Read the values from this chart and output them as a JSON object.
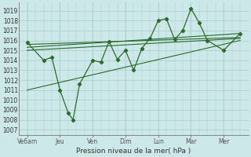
{
  "xlabel": "Pression niveau de la mer( hPa )",
  "bg_color": "#cce8e8",
  "grid_color": "#aacccc",
  "line_color": "#2d6a2d",
  "xlim": [
    0,
    14
  ],
  "ylim": [
    1006.5,
    1019.8
  ],
  "yticks": [
    1007,
    1008,
    1009,
    1010,
    1011,
    1012,
    1013,
    1014,
    1015,
    1016,
    1017,
    1018,
    1019
  ],
  "xtick_labels": [
    "Ve6am",
    "Jeu",
    "Ven",
    "Dim",
    "Lun",
    "Mar",
    "Mer"
  ],
  "xtick_positions": [
    0.5,
    2.5,
    4.5,
    6.5,
    8.5,
    10.5,
    12.5
  ],
  "series1_x": [
    0.5,
    1.5,
    2.0,
    2.5,
    3.0,
    3.3,
    3.7,
    4.5,
    5.0,
    5.5,
    6.0,
    6.5,
    7.0,
    7.5,
    8.0,
    8.5,
    9.0,
    9.5,
    10.0,
    10.5,
    11.0,
    11.5,
    12.5,
    13.5
  ],
  "series1_y": [
    1015.8,
    1014.0,
    1014.3,
    1011.0,
    1008.7,
    1008.0,
    1011.6,
    1014.0,
    1013.8,
    1015.9,
    1014.1,
    1015.0,
    1013.0,
    1015.2,
    1016.2,
    1018.0,
    1018.2,
    1016.1,
    1017.0,
    1019.2,
    1017.8,
    1016.0,
    1015.0,
    1016.7
  ],
  "trend1_x": [
    0.5,
    13.5
  ],
  "trend1_y": [
    1015.6,
    1016.3
  ],
  "trend2_x": [
    0.5,
    13.5
  ],
  "trend2_y": [
    1015.3,
    1016.7
  ],
  "trend3_x": [
    0.5,
    13.5
  ],
  "trend3_y": [
    1015.0,
    1016.2
  ],
  "trend4_x": [
    0.5,
    13.5
  ],
  "trend4_y": [
    1011.0,
    1016.0
  ]
}
